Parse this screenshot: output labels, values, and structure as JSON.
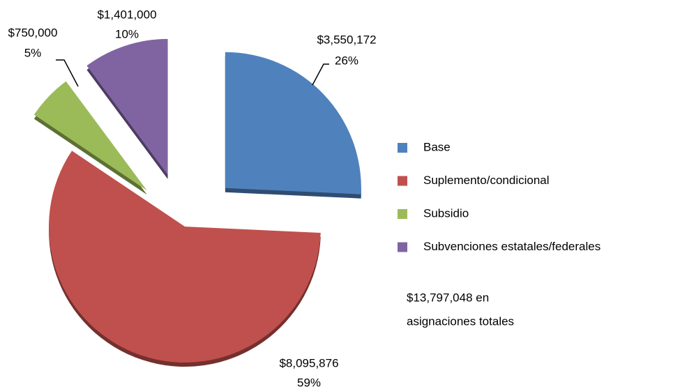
{
  "chart_data": {
    "type": "pie",
    "categories": [
      "Base",
      "Suplemento/condicional",
      "Subsidio",
      "Subvenciones estatales/federales"
    ],
    "values": [
      3550172,
      8095876,
      750000,
      1401000
    ],
    "value_labels": [
      "$3,550,172",
      "$8,095,876",
      "$750,000",
      "$1,401,000"
    ],
    "percentages": [
      26,
      59,
      5,
      10
    ],
    "percentage_labels": [
      "26%",
      "59%",
      "5%",
      "10%"
    ],
    "colors": [
      "#4f81bd",
      "#c0504d",
      "#9bbb59",
      "#8064a2"
    ],
    "legend": "right",
    "annotation": [
      "$13,797,048 en",
      "asignaciones totales"
    ]
  }
}
